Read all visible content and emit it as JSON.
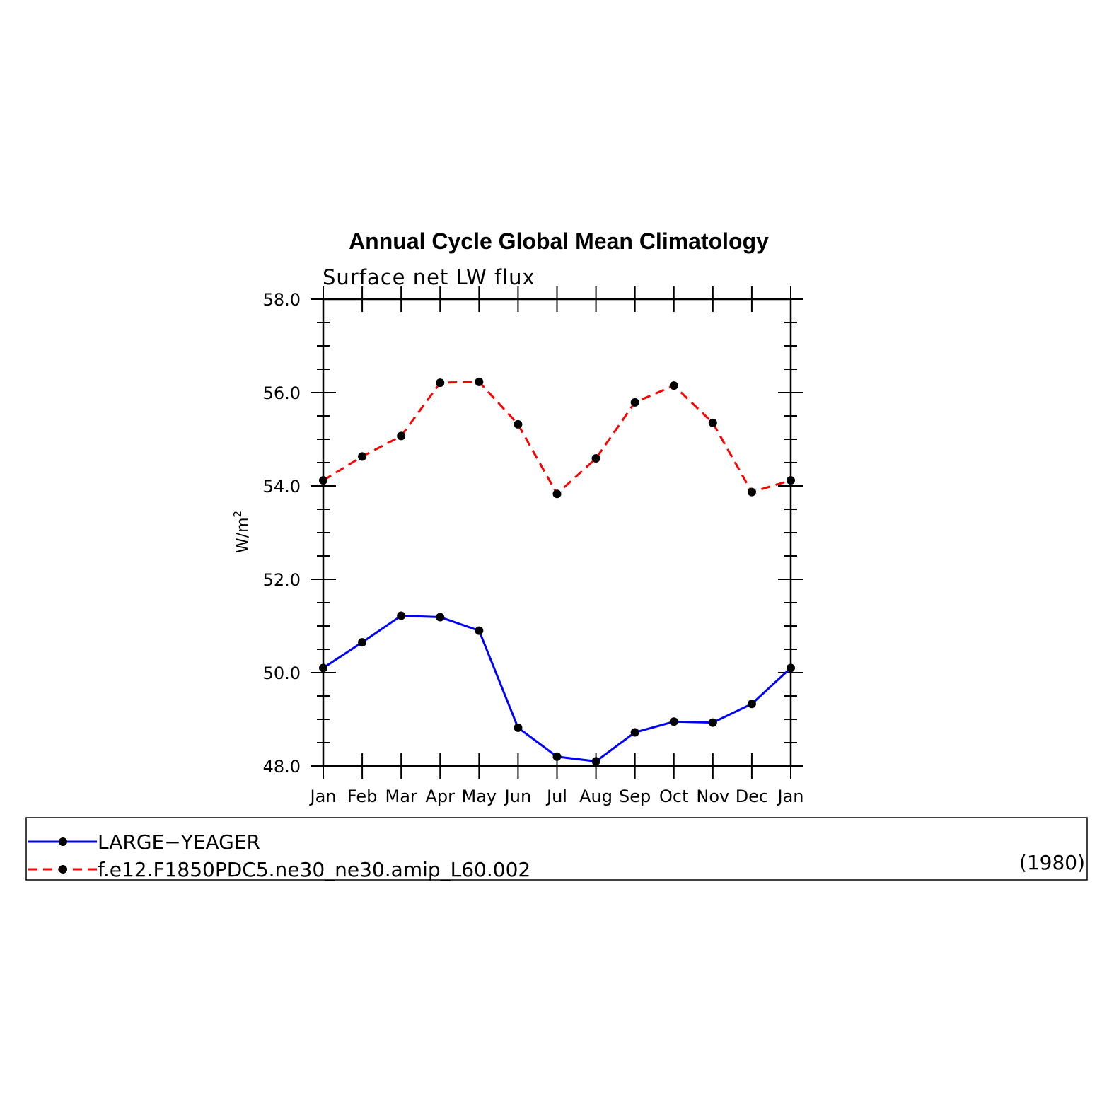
{
  "chart_data": {
    "type": "line",
    "title": "Annual Cycle Global Mean Climatology",
    "subtitle": "Surface net LW flux",
    "ylabel": "W/m",
    "ylabel_superscript": "2",
    "categories": [
      "Jan",
      "Feb",
      "Mar",
      "Apr",
      "May",
      "Jun",
      "Jul",
      "Aug",
      "Sep",
      "Oct",
      "Nov",
      "Dec",
      "Jan"
    ],
    "ylim": [
      48.0,
      58.0
    ],
    "yticks": [
      "48.0",
      "50.0",
      "52.0",
      "54.0",
      "56.0",
      "58.0"
    ],
    "grid": false,
    "legend_position": "bottom",
    "series": [
      {
        "name": "LARGE−YEAGER",
        "color": "#0000ff",
        "dash": "solid",
        "marker": "filled-circle",
        "values": [
          50.1,
          50.65,
          51.22,
          51.19,
          50.9,
          48.82,
          48.2,
          48.1,
          48.72,
          48.95,
          48.93,
          49.33,
          50.1
        ]
      },
      {
        "name": "f.e12.F1850PDC5.ne30_ne30.amip_L60.002",
        "color": "#ff0000",
        "dash": "dashed",
        "marker": "filled-circle",
        "values": [
          54.12,
          54.63,
          55.07,
          56.21,
          56.23,
          55.32,
          53.83,
          54.59,
          55.79,
          56.15,
          55.35,
          53.87,
          54.12
        ]
      }
    ],
    "legend_note": "(1980)"
  }
}
